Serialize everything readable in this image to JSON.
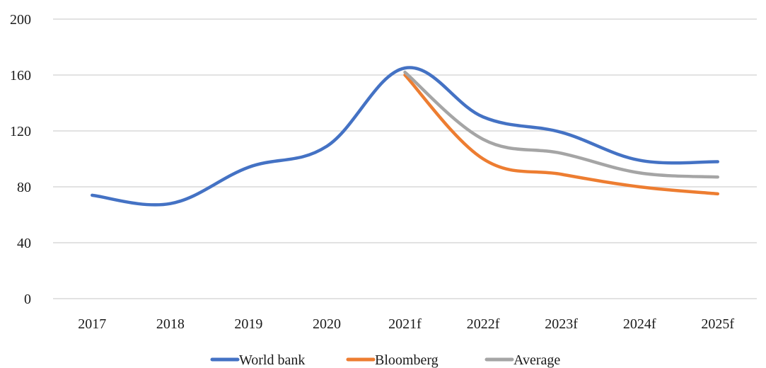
{
  "chart_data": {
    "type": "line",
    "categories": [
      "2017",
      "2018",
      "2019",
      "2020",
      "2021f",
      "2022f",
      "2023f",
      "2024f",
      "2025f"
    ],
    "ylim": [
      0,
      200
    ],
    "yticks": [
      0,
      40,
      80,
      120,
      160,
      200
    ],
    "grid": true,
    "legend_position": "bottom",
    "smooth": true,
    "series": [
      {
        "name": "World bank",
        "color": "#4472C4",
        "values": [
          74,
          68,
          94,
          109,
          165,
          130,
          119,
          99,
          98
        ]
      },
      {
        "name": "Bloomberg",
        "color": "#ED7D31",
        "values": [
          null,
          null,
          null,
          null,
          160,
          100,
          89,
          80,
          75
        ]
      },
      {
        "name": "Average",
        "color": "#A5A5A5",
        "values": [
          null,
          null,
          null,
          null,
          162,
          114,
          104,
          90,
          87
        ]
      }
    ]
  }
}
